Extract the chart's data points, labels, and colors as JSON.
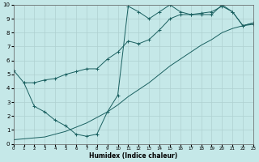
{
  "xlabel": "Humidex (Indice chaleur)",
  "xlim": [
    0,
    23
  ],
  "ylim": [
    0,
    10
  ],
  "xticks": [
    0,
    1,
    2,
    3,
    4,
    5,
    6,
    7,
    8,
    9,
    10,
    11,
    12,
    13,
    14,
    15,
    16,
    17,
    18,
    19,
    20,
    21,
    22,
    23
  ],
  "yticks": [
    0,
    1,
    2,
    3,
    4,
    5,
    6,
    7,
    8,
    9,
    10
  ],
  "bg_color": "#c5e8e8",
  "line_color": "#1a6060",
  "grid_color": "#afd0d0",
  "line1_x": [
    0,
    1,
    2,
    3,
    4,
    5,
    6,
    7,
    8,
    9,
    10,
    11,
    12,
    13,
    14,
    15,
    16,
    17,
    18,
    19,
    20,
    21,
    22,
    23
  ],
  "line1_y": [
    5.3,
    4.4,
    4.4,
    4.6,
    4.7,
    5.0,
    5.2,
    5.4,
    5.4,
    6.1,
    6.6,
    7.4,
    7.2,
    7.5,
    8.2,
    9.0,
    9.3,
    9.3,
    9.4,
    9.5,
    9.9,
    9.5,
    8.5,
    8.6
  ],
  "line2_x": [
    0,
    3,
    4,
    5,
    6,
    7,
    8,
    9,
    10,
    11,
    12,
    13,
    14,
    15,
    16,
    17,
    18,
    19,
    20,
    21,
    22,
    23
  ],
  "line2_y": [
    0.3,
    0.5,
    0.7,
    0.9,
    1.2,
    1.5,
    1.9,
    2.3,
    2.8,
    3.4,
    3.9,
    4.4,
    5.0,
    5.6,
    6.1,
    6.6,
    7.1,
    7.5,
    8.0,
    8.3,
    8.5,
    8.7
  ],
  "line3_x": [
    1,
    2,
    3,
    4,
    5,
    6,
    7,
    8,
    9,
    10,
    11,
    12,
    13,
    14,
    15,
    16,
    17,
    18,
    19,
    20,
    21,
    22,
    23
  ],
  "line3_y": [
    4.4,
    2.7,
    2.3,
    1.7,
    1.3,
    0.7,
    0.55,
    0.7,
    2.3,
    3.5,
    9.9,
    9.5,
    9.0,
    9.5,
    10.0,
    9.5,
    9.3,
    9.3,
    9.3,
    10.0,
    9.5,
    8.5,
    8.7
  ]
}
